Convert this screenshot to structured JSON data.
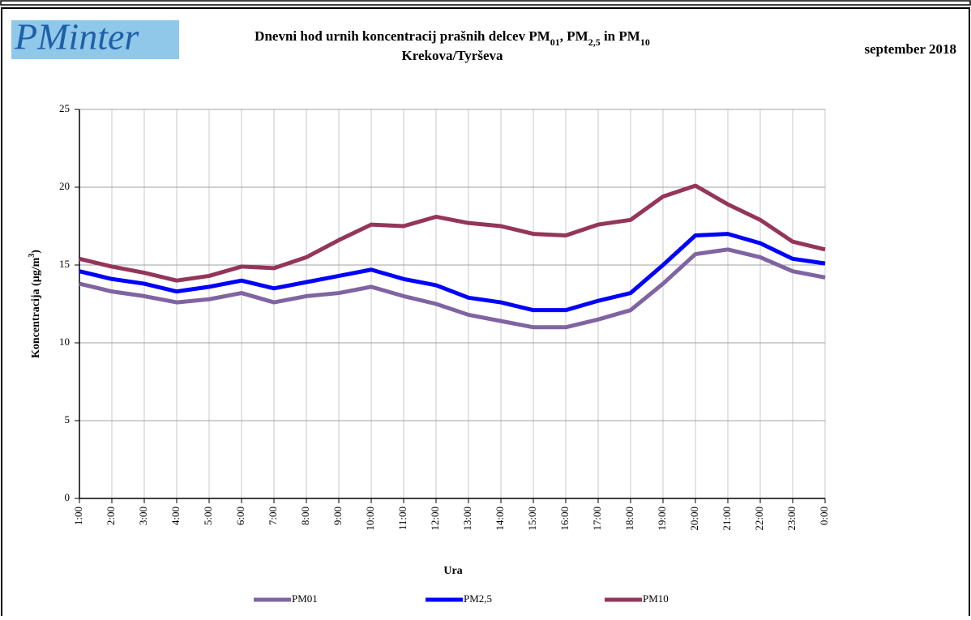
{
  "logo": "PMinter",
  "chart_data": {
    "type": "line",
    "title_parts": [
      "Dnevni hod urnih koncentracij prašnih delcev PM",
      "01",
      ", PM",
      "2,5",
      " in PM",
      "10"
    ],
    "subtitle": "Krekova/Tyrševa",
    "date_label": "september 2018",
    "x_label": "Ura",
    "y_label_parts": [
      "Koncentracija (µg/m",
      "3",
      ")"
    ],
    "categories": [
      "1:00",
      "2:00",
      "3:00",
      "4:00",
      "5:00",
      "6:00",
      "7:00",
      "8:00",
      "9:00",
      "10:00",
      "11:00",
      "12:00",
      "13:00",
      "14:00",
      "15:00",
      "16:00",
      "17:00",
      "18:00",
      "19:00",
      "20:00",
      "21:00",
      "22:00",
      "23:00",
      "0:00"
    ],
    "series": [
      {
        "name": "PM01",
        "color": "#8064a2",
        "values": [
          13.8,
          13.3,
          13.0,
          12.6,
          12.8,
          13.2,
          12.6,
          13.0,
          13.2,
          13.6,
          13.0,
          12.5,
          11.8,
          11.4,
          11.0,
          11.0,
          11.5,
          12.1,
          13.8,
          15.7,
          16.0,
          15.5,
          14.6,
          14.2
        ]
      },
      {
        "name": "PM2,5",
        "color": "#0000ff",
        "values": [
          14.6,
          14.1,
          13.8,
          13.3,
          13.6,
          14.0,
          13.5,
          13.9,
          14.3,
          14.7,
          14.1,
          13.7,
          12.9,
          12.6,
          12.1,
          12.1,
          12.7,
          13.2,
          15.0,
          16.9,
          17.0,
          16.4,
          15.4,
          15.1
        ]
      },
      {
        "name": "PM10",
        "color": "#953559",
        "values": [
          15.4,
          14.9,
          14.5,
          14.0,
          14.3,
          14.9,
          14.8,
          15.5,
          16.6,
          17.6,
          17.5,
          18.1,
          17.7,
          17.5,
          17.0,
          16.9,
          17.6,
          17.9,
          19.4,
          20.1,
          18.9,
          17.9,
          16.5,
          16.0
        ]
      }
    ],
    "ylim": [
      0,
      25
    ],
    "yticks": [
      0,
      5,
      10,
      15,
      20,
      25
    ],
    "grid": true,
    "legend": "bottom"
  }
}
